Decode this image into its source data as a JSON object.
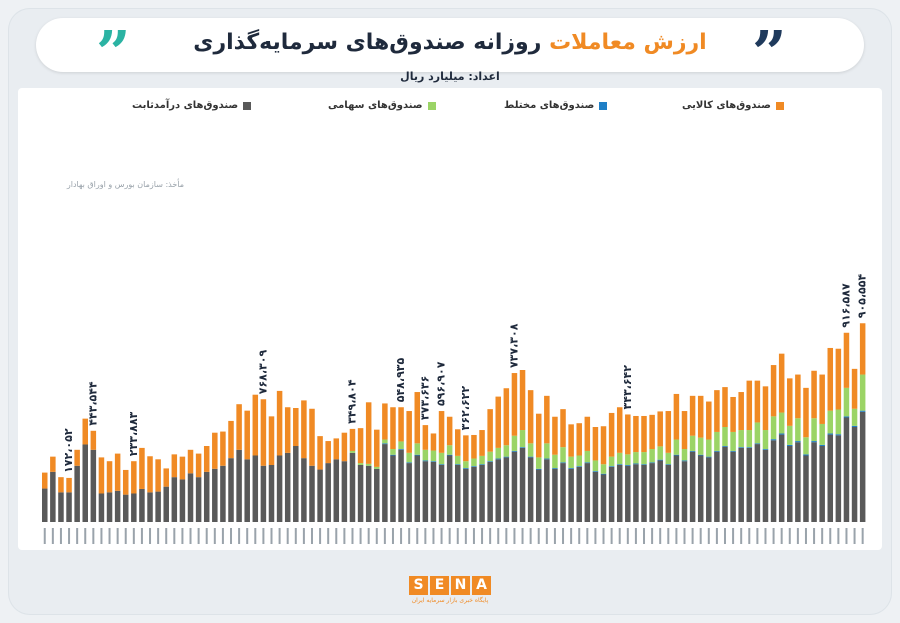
{
  "header": {
    "title_accent": "ارزش معاملات",
    "title_main": "روزانه صندوق‌های سرمایه‌گذاری",
    "unit": "اعداد: میلیارد ریال",
    "source": "مأخذ: سازمان بورس و اوراق بهادار",
    "quote_glyph": "”"
  },
  "colors": {
    "fixed_income": "#595959",
    "mixed": "#1f7fc6",
    "equity": "#9bd466",
    "commodity": "#f08a24",
    "quote_left": "#2bb3a3",
    "quote_right": "#1f3a5c"
  },
  "legend": {
    "commodity": "صندوق‌های کالایی",
    "mixed": "صندوق‌های مختلط",
    "equity": "صندوق‌های سهامی",
    "fixed_income": "صندوق‌های درآمدثابت"
  },
  "logo": {
    "letters": [
      "S",
      "E",
      "N",
      "A"
    ],
    "tagline": "پایگاه خبری بازار سرمایه ایران"
  },
  "chart_data": {
    "type": "bar",
    "stacked": true,
    "categories_note": "daily dates (unreadable)",
    "series": [
      {
        "key": "fixed_income",
        "name": "صندوق‌های درآمدثابت",
        "values": [
          88,
          132,
          78,
          78,
          148,
          204,
          190,
          75,
          78,
          82,
          72,
          75,
          87,
          78,
          80,
          93,
          118,
          112,
          128,
          118,
          132,
          140,
          148,
          168,
          190,
          165,
          175,
          148,
          150,
          175,
          182,
          200,
          168,
          148,
          138,
          155,
          165,
          160,
          182,
          150,
          148,
          140,
          205,
          175,
          190,
          155,
          175,
          160,
          158,
          150,
          175,
          150,
          140,
          145,
          150,
          158,
          165,
          170,
          185,
          195,
          170,
          138,
          165,
          140,
          155,
          140,
          145,
          155,
          132,
          125,
          145,
          150,
          148,
          152,
          150,
          155,
          162,
          150,
          175,
          160,
          185,
          175,
          170,
          185,
          198,
          185,
          195,
          195,
          205,
          190,
          215,
          230,
          200,
          210,
          175,
          210,
          200,
          230,
          228,
          275,
          250,
          290
        ]
      },
      {
        "key": "mixed",
        "name": "صندوق‌های مختلط",
        "values": [
          0,
          0,
          0,
          0,
          0,
          0,
          0,
          0,
          0,
          0,
          0,
          0,
          0,
          0,
          0,
          0,
          0,
          0,
          0,
          0,
          0,
          0,
          0,
          0,
          0,
          0,
          0,
          0,
          0,
          0,
          0,
          0,
          0,
          0,
          0,
          0,
          0,
          0,
          0,
          0,
          0,
          0,
          2,
          2,
          2,
          2,
          2,
          2,
          2,
          2,
          2,
          2,
          2,
          2,
          2,
          2,
          2,
          2,
          2,
          2,
          2,
          2,
          2,
          2,
          2,
          2,
          2,
          2,
          2,
          2,
          2,
          2,
          2,
          2,
          2,
          2,
          2,
          2,
          2,
          2,
          2,
          2,
          2,
          2,
          2,
          2,
          2,
          2,
          2,
          2,
          3,
          3,
          3,
          3,
          3,
          3,
          3,
          3,
          3,
          3,
          3,
          3
        ]
      },
      {
        "key": "equity",
        "name": "صندوق‌های سهامی",
        "values": [
          0,
          0,
          0,
          0,
          0,
          0,
          0,
          0,
          0,
          0,
          0,
          0,
          0,
          0,
          0,
          0,
          0,
          0,
          0,
          0,
          0,
          0,
          0,
          0,
          0,
          0,
          0,
          0,
          0,
          0,
          0,
          0,
          0,
          0,
          0,
          0,
          0,
          0,
          5,
          5,
          5,
          5,
          10,
          15,
          20,
          25,
          30,
          28,
          28,
          30,
          25,
          22,
          18,
          20,
          22,
          25,
          28,
          30,
          40,
          45,
          35,
          30,
          40,
          35,
          40,
          30,
          28,
          30,
          28,
          25,
          25,
          30,
          28,
          30,
          32,
          35,
          35,
          30,
          40,
          30,
          40,
          45,
          45,
          50,
          50,
          50,
          45,
          45,
          55,
          50,
          60,
          55,
          50,
          60,
          45,
          60,
          55,
          60,
          65,
          75,
          45,
          95
        ]
      },
      {
        "key": "commodity",
        "name": "صندوق‌های کالایی",
        "values": [
          42,
          40,
          40,
          38,
          42,
          68,
          50,
          95,
          82,
          98,
          65,
          85,
          108,
          95,
          85,
          48,
          60,
          60,
          62,
          62,
          68,
          95,
          90,
          98,
          120,
          128,
          160,
          175,
          128,
          170,
          120,
          100,
          152,
          150,
          88,
          58,
          55,
          75,
          58,
          92,
          162,
          98,
          95,
          110,
          90,
          110,
          135,
          65,
          45,
          110,
          75,
          70,
          68,
          62,
          68,
          112,
          135,
          150,
          165,
          158,
          140,
          115,
          125,
          100,
          100,
          85,
          85,
          90,
          88,
          100,
          115,
          120,
          105,
          95,
          95,
          90,
          92,
          110,
          120,
          100,
          105,
          110,
          100,
          110,
          105,
          92,
          100,
          130,
          110,
          115,
          135,
          155,
          125,
          115,
          130,
          125,
          130,
          165,
          160,
          145,
          105,
          135
        ]
      }
    ],
    "annotations": [
      {
        "index": 3,
        "label": "۱۷۲،۰۵۲"
      },
      {
        "index": 6,
        "label": "۴۴۳،۵۴۴"
      },
      {
        "index": 11,
        "label": "۲۳۳،۸۸۳"
      },
      {
        "index": 27,
        "label": "۷۶۸،۳۰۹"
      },
      {
        "index": 38,
        "label": "۳۴۹،۸۰۴"
      },
      {
        "index": 44,
        "label": "۵۴۸،۹۳۵"
      },
      {
        "index": 47,
        "label": "۳۷۳،۶۳۶"
      },
      {
        "index": 49,
        "label": "۵۹۶،۹۰۷"
      },
      {
        "index": 52,
        "label": "۳۶۲،۶۲۲"
      },
      {
        "index": 58,
        "label": "۷۳۷،۳۰۸"
      },
      {
        "index": 72,
        "label": "۳۴۳،۶۴۲"
      },
      {
        "index": 99,
        "label": "۹۱۶،۵۸۷"
      },
      {
        "index": 101,
        "label": "۹۰۵،۵۵۴"
      }
    ]
  }
}
